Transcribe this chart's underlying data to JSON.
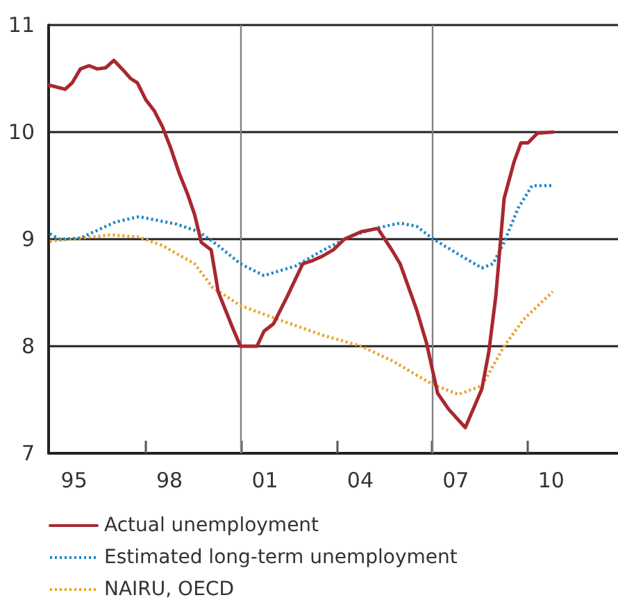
{
  "chart_data": {
    "type": "line",
    "xlim": [
      1994.2,
      2012.1
    ],
    "ylim": [
      7,
      11
    ],
    "yticks": [
      7,
      8,
      9,
      10,
      11
    ],
    "xticks": [
      {
        "value": 1995,
        "label": "95"
      },
      {
        "value": 1997.25,
        "label": null
      },
      {
        "value": 1998,
        "label": "98"
      },
      {
        "value": 2000.25,
        "label": null
      },
      {
        "value": 2001,
        "label": "01"
      },
      {
        "value": 2003.25,
        "label": null
      },
      {
        "value": 2004,
        "label": "04"
      },
      {
        "value": 2006.25,
        "label": null
      },
      {
        "value": 2007,
        "label": "07"
      },
      {
        "value": 2009.25,
        "label": null
      },
      {
        "value": 2010,
        "label": "10"
      }
    ],
    "grid": "y",
    "legend": "bottom",
    "marker": "none",
    "ref_lines": [
      {
        "axis": "x",
        "value": 2000.25,
        "color": "#808080"
      },
      {
        "axis": "x",
        "value": 2006.25,
        "color": "#808080"
      }
    ],
    "series": [
      {
        "name": "Actual unemployment",
        "color": "#a8282e",
        "line_style": "solid",
        "x": [
          1994.2,
          1994.72,
          1994.94,
          1995.2,
          1995.47,
          1995.73,
          1995.99,
          1996.25,
          1996.51,
          1996.78,
          1996.99,
          1997.26,
          1997.52,
          1997.78,
          1998.04,
          1998.3,
          1998.57,
          1998.79,
          1999.0,
          1999.31,
          1999.53,
          1999.96,
          2000.23,
          2000.75,
          2000.97,
          2001.27,
          2001.71,
          2002.19,
          2002.5,
          2002.8,
          2003.15,
          2003.5,
          2004.03,
          2004.55,
          2005.03,
          2005.25,
          2005.77,
          2006.08,
          2006.43,
          2006.78,
          2007.3,
          2007.82,
          2008.04,
          2008.26,
          2008.52,
          2008.83,
          2009.05,
          2009.27,
          2009.57,
          2010.05
        ],
        "values": [
          10.44,
          10.4,
          10.46,
          10.59,
          10.62,
          10.59,
          10.6,
          10.67,
          10.59,
          10.5,
          10.46,
          10.3,
          10.2,
          10.05,
          9.85,
          9.62,
          9.42,
          9.23,
          8.97,
          8.9,
          8.51,
          8.19,
          8.0,
          8.0,
          8.14,
          8.21,
          8.47,
          8.77,
          8.8,
          8.84,
          8.9,
          9.0,
          9.07,
          9.1,
          8.88,
          8.77,
          8.34,
          8.03,
          7.56,
          7.41,
          7.24,
          7.6,
          7.95,
          8.47,
          9.38,
          9.72,
          9.9,
          9.9,
          9.99,
          10.0
        ]
      },
      {
        "name": "Estimated long-term unemployment",
        "color": "#1a86c8",
        "line_style": "dotted",
        "x": [
          1994.24,
          1994.55,
          1995.2,
          1996.3,
          1997.04,
          1998.22,
          1998.92,
          1999.53,
          2000.23,
          2000.97,
          2001.97,
          2002.85,
          2003.72,
          2004.46,
          2005.25,
          2005.77,
          2006.3,
          2007.08,
          2007.82,
          2008.17,
          2008.52,
          2008.96,
          2009.4,
          2010.05
        ],
        "values": [
          9.05,
          9.0,
          9.01,
          9.16,
          9.21,
          9.14,
          9.07,
          8.94,
          8.77,
          8.66,
          8.75,
          8.9,
          9.03,
          9.1,
          9.15,
          9.12,
          9.0,
          8.86,
          8.73,
          8.77,
          8.97,
          9.29,
          9.5,
          9.5
        ]
      },
      {
        "name": "NAIRU, OECD",
        "color": "#e8a32a",
        "line_style": "dotted",
        "x": [
          1994.24,
          1995.2,
          1996.17,
          1997.04,
          1997.78,
          1998.79,
          1999.35,
          2000.23,
          2001.41,
          2002.85,
          2004.03,
          2005.03,
          2005.77,
          2006.3,
          2007.08,
          2007.82,
          2008.52,
          2009.13,
          2010.05
        ],
        "values": [
          8.98,
          9.01,
          9.04,
          9.02,
          8.94,
          8.77,
          8.55,
          8.38,
          8.25,
          8.1,
          8.0,
          7.86,
          7.73,
          7.64,
          7.55,
          7.63,
          8.0,
          8.25,
          8.51
        ]
      }
    ]
  }
}
